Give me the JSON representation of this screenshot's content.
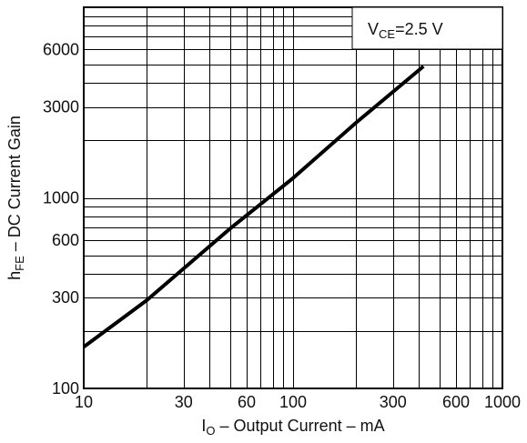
{
  "chart_data": {
    "type": "line",
    "title": "",
    "x_scale": "log",
    "y_scale": "log",
    "xlim": [
      10,
      1000
    ],
    "ylim": [
      100,
      10000
    ],
    "grid": true,
    "x_ticks": [
      {
        "value": 10,
        "label": "10"
      },
      {
        "value": 30,
        "label": "30"
      },
      {
        "value": 60,
        "label": "60"
      },
      {
        "value": 100,
        "label": "100"
      },
      {
        "value": 300,
        "label": "300"
      },
      {
        "value": 600,
        "label": "600"
      },
      {
        "value": 1000,
        "label": "1000"
      }
    ],
    "y_ticks": [
      {
        "value": 100,
        "label": "100"
      },
      {
        "value": 300,
        "label": "300"
      },
      {
        "value": 600,
        "label": "600"
      },
      {
        "value": 1000,
        "label": "1000"
      },
      {
        "value": 3000,
        "label": "3000"
      },
      {
        "value": 6000,
        "label": "6000"
      }
    ],
    "xlabel": {
      "prefix": "I",
      "sub": "O",
      "rest": " – Output Current – mA"
    },
    "ylabel": {
      "prefix": "h",
      "sub": "FE",
      "rest": " – DC Current Gain"
    },
    "annotation": {
      "prefix": "V",
      "sub": "CE",
      "rest": "=2.5 V",
      "position": "top-right"
    },
    "series": [
      {
        "x": [
          10,
          20,
          50,
          100,
          200,
          420
        ],
        "y": [
          165,
          290,
          690,
          1270,
          2480,
          4900
        ]
      }
    ]
  }
}
